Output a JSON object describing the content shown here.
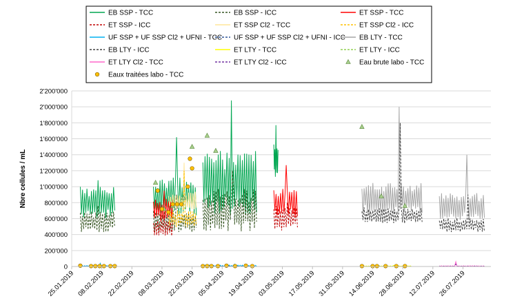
{
  "chart_data": {
    "type": "line",
    "title": "",
    "xlabel": "",
    "ylabel": "Nbre cellules / mL",
    "ylim": [
      0,
      2200000
    ],
    "y_ticks": [
      0,
      200000,
      400000,
      600000,
      800000,
      1000000,
      1200000,
      1400000,
      1600000,
      1800000,
      2000000,
      2200000
    ],
    "y_tick_labels": [
      "0",
      "200'000",
      "400'000",
      "600'000",
      "800'000",
      "1'000'000",
      "1'200'000",
      "1'400'000",
      "1'600'000",
      "1'800'000",
      "2'000'000",
      "2'200'000"
    ],
    "x_tick_labels": [
      "25.01.2019",
      "08.02.2019",
      "22.02.2019",
      "08.03.2019",
      "22.03.2019",
      "05.04.2019",
      "19.04.2019",
      "03.05.2019",
      "17.05.2019",
      "31.05.2019",
      "14.06.2019",
      "28.06.2019",
      "12.07.2019",
      "26.07.2019"
    ],
    "xlim": [
      "2019-01-25",
      "2019-08-08"
    ],
    "grid": true,
    "legend_position": "top",
    "series": [
      {
        "name": "EB SSP - TCC",
        "color": "#00a651",
        "style": "solid",
        "segments": [
          {
            "start": "2019-01-29",
            "end": "2019-02-14",
            "base": 800000,
            "amp": 200000,
            "peak": 1080000
          },
          {
            "start": "2019-03-04",
            "end": "2019-03-24",
            "base": 880000,
            "amp": 240000,
            "peak": 1620000
          },
          {
            "start": "2019-03-27",
            "end": "2019-04-21",
            "base": 1050000,
            "amp": 420000,
            "peak": 2080000
          },
          {
            "start": "2019-04-29",
            "end": "2019-05-01",
            "base": 1350000,
            "amp": 250000,
            "peak": 1770000
          }
        ]
      },
      {
        "name": "EB SSP - ICC",
        "color": "#375623",
        "style": "dashed",
        "segments": [
          {
            "start": "2019-01-29",
            "end": "2019-02-14",
            "base": 560000,
            "amp": 130000,
            "peak": 760000
          },
          {
            "start": "2019-03-04",
            "end": "2019-03-24",
            "base": 560000,
            "amp": 140000,
            "peak": 900000
          },
          {
            "start": "2019-03-27",
            "end": "2019-04-21",
            "base": 700000,
            "amp": 280000,
            "peak": 1200000
          }
        ]
      },
      {
        "name": "ET SSP - TCC",
        "color": "#ff0000",
        "style": "solid",
        "segments": [
          {
            "start": "2019-03-04",
            "end": "2019-03-13",
            "base": 700000,
            "amp": 150000,
            "peak": 950000
          },
          {
            "start": "2019-04-29",
            "end": "2019-05-10",
            "base": 800000,
            "amp": 180000,
            "peak": 1270000
          }
        ]
      },
      {
        "name": "ET SSP - ICC",
        "color": "#c00000",
        "style": "dashed",
        "segments": [
          {
            "start": "2019-03-04",
            "end": "2019-03-13",
            "base": 480000,
            "amp": 100000,
            "peak": 650000
          },
          {
            "start": "2019-04-29",
            "end": "2019-05-10",
            "base": 600000,
            "amp": 160000,
            "peak": 800000
          }
        ]
      },
      {
        "name": "ET SSP Cl2 - TCC",
        "color": "#ffe699",
        "style": "solid",
        "segments": [
          {
            "start": "2019-03-11",
            "end": "2019-03-24",
            "base": 820000,
            "amp": 120000,
            "peak": 1300000
          }
        ]
      },
      {
        "name": "ET SSP Cl2 - ICC",
        "color": "#ffc000",
        "style": "dashed",
        "segments": [
          {
            "start": "2019-03-11",
            "end": "2019-03-24",
            "base": 600000,
            "amp": 110000,
            "peak": 1200000
          }
        ]
      },
      {
        "name": "UF SSP + UF SSP Cl2 + UFNI - TCC",
        "color": "#00b0f0",
        "style": "solid",
        "segments": [
          {
            "start": "2019-01-29",
            "end": "2019-02-14",
            "base": 5000,
            "amp": 8000,
            "peak": 40000
          },
          {
            "start": "2019-03-27",
            "end": "2019-04-21",
            "base": 8000,
            "amp": 10000,
            "peak": 30000
          }
        ]
      },
      {
        "name": "UF SSP + UF SSP Cl2 + UFNI - ICC",
        "color": "#2f5597",
        "style": "dashed",
        "segments": [
          {
            "start": "2019-01-29",
            "end": "2019-02-14",
            "base": 2000,
            "amp": 3000,
            "peak": 10000
          },
          {
            "start": "2019-03-27",
            "end": "2019-04-21",
            "base": 3000,
            "amp": 4000,
            "peak": 12000
          }
        ]
      },
      {
        "name": "EB LTY - TCC",
        "color": "#a6a6a6",
        "style": "solid",
        "segments": [
          {
            "start": "2019-06-09",
            "end": "2019-07-07",
            "base": 850000,
            "amp": 200000,
            "peak": 2000000
          },
          {
            "start": "2019-07-15",
            "end": "2019-08-05",
            "base": 750000,
            "amp": 180000,
            "peak": 1400000
          }
        ]
      },
      {
        "name": "EB LTY - ICC",
        "color": "#404040",
        "style": "dashed",
        "segments": [
          {
            "start": "2019-06-09",
            "end": "2019-07-07",
            "base": 640000,
            "amp": 100000,
            "peak": 1800000
          },
          {
            "start": "2019-07-15",
            "end": "2019-08-05",
            "base": 520000,
            "amp": 90000,
            "peak": 900000
          }
        ]
      },
      {
        "name": "ET LTY - TCC",
        "color": "#ffff00",
        "style": "solid",
        "segments": [
          {
            "start": "2019-06-09",
            "end": "2019-07-02",
            "base": 4000,
            "amp": 4000,
            "peak": 15000
          }
        ]
      },
      {
        "name": "ET LTY - ICC",
        "color": "#92d050",
        "style": "dashed",
        "segments": [
          {
            "start": "2019-06-09",
            "end": "2019-07-02",
            "base": 2000,
            "amp": 2000,
            "peak": 8000
          }
        ]
      },
      {
        "name": "ET LTY Cl2 - TCC",
        "color": "#ff66cc",
        "style": "solid",
        "segments": [
          {
            "start": "2019-07-15",
            "end": "2019-08-05",
            "base": 5000,
            "amp": 5000,
            "peak": 60000
          }
        ]
      },
      {
        "name": "ET LTY Cl2 - ICC",
        "color": "#7030a0",
        "style": "dashed",
        "segments": [
          {
            "start": "2019-07-15",
            "end": "2019-08-05",
            "base": 3000,
            "amp": 3000,
            "peak": 30000
          }
        ]
      },
      {
        "name": "Eau brute labo - TCC",
        "color": "#a9d08e",
        "marker": "triangle",
        "points": [
          {
            "x": "2019-03-05",
            "y": 1050000
          },
          {
            "x": "2019-03-09",
            "y": 720000
          },
          {
            "x": "2019-03-13",
            "y": 760000
          },
          {
            "x": "2019-03-18",
            "y": 860000
          },
          {
            "x": "2019-03-22",
            "y": 1500000
          },
          {
            "x": "2019-03-29",
            "y": 1640000
          },
          {
            "x": "2019-04-02",
            "y": 1450000
          },
          {
            "x": "2019-06-09",
            "y": 1750000
          },
          {
            "x": "2019-06-18",
            "y": 880000
          },
          {
            "x": "2019-06-29",
            "y": 760000
          }
        ]
      },
      {
        "name": "Eaux traitées labo - TCC",
        "color": "#ffc000",
        "marker": "circle",
        "points": [
          {
            "x": "2019-01-29",
            "y": 10000
          },
          {
            "x": "2019-02-03",
            "y": 5000
          },
          {
            "x": "2019-02-05",
            "y": 5000
          },
          {
            "x": "2019-02-07",
            "y": 5000
          },
          {
            "x": "2019-02-09",
            "y": 5000
          },
          {
            "x": "2019-02-12",
            "y": 5000
          },
          {
            "x": "2019-02-14",
            "y": 5000
          },
          {
            "x": "2019-03-06",
            "y": 950000
          },
          {
            "x": "2019-03-08",
            "y": 720000
          },
          {
            "x": "2019-03-11",
            "y": 680000
          },
          {
            "x": "2019-03-13",
            "y": 780000
          },
          {
            "x": "2019-03-15",
            "y": 780000
          },
          {
            "x": "2019-03-17",
            "y": 780000
          },
          {
            "x": "2019-03-20",
            "y": 1000000
          },
          {
            "x": "2019-03-21",
            "y": 1350000
          },
          {
            "x": "2019-03-22",
            "y": 1230000
          },
          {
            "x": "2019-03-27",
            "y": 5000
          },
          {
            "x": "2019-03-29",
            "y": 5000
          },
          {
            "x": "2019-03-31",
            "y": 5000
          },
          {
            "x": "2019-04-03",
            "y": 5000
          },
          {
            "x": "2019-04-07",
            "y": 10000
          },
          {
            "x": "2019-04-11",
            "y": 5000
          },
          {
            "x": "2019-04-16",
            "y": 10000
          },
          {
            "x": "2019-04-19",
            "y": 5000
          },
          {
            "x": "2019-06-09",
            "y": 5000
          },
          {
            "x": "2019-06-14",
            "y": 5000
          },
          {
            "x": "2019-06-16",
            "y": 5000
          },
          {
            "x": "2019-06-20",
            "y": 5000
          },
          {
            "x": "2019-06-25",
            "y": 5000
          },
          {
            "x": "2019-06-29",
            "y": 5000
          }
        ]
      }
    ]
  }
}
